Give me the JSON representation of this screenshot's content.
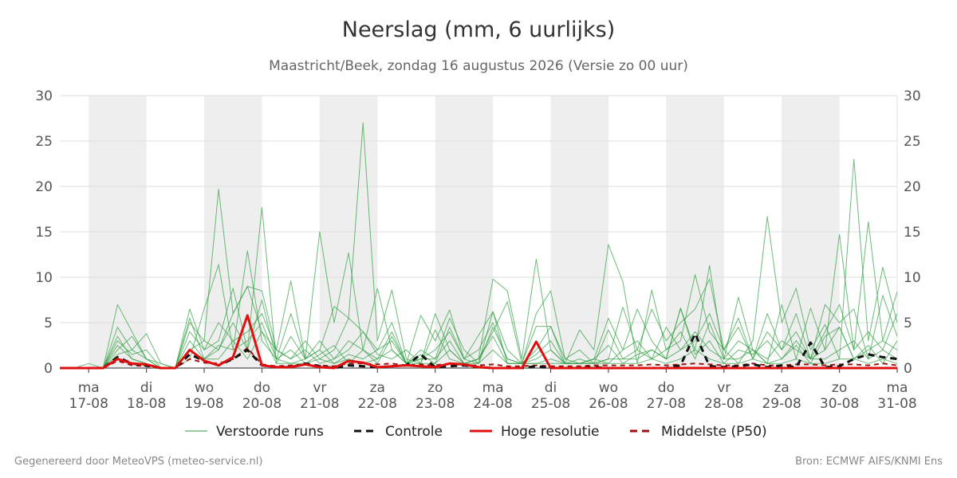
{
  "header": {
    "title": "Neerslag (mm, 6 uurlijks)",
    "subtitle": "Maastricht/Beek, zondag 16 augustus 2026 (Versie zo 00 uur)"
  },
  "footer": {
    "left": "Gegenereerd door MeteoVPS (meteo-service.nl)",
    "right": "Bron: ECMWF AIFS/KNMI Ens"
  },
  "chart_data": {
    "type": "line",
    "title": "Neerslag (mm, 6 uurlijks)",
    "subtitle": "Maastricht/Beek, zondag 16 augustus 2026 (Versie zo 00 uur)",
    "ylim": [
      0,
      30
    ],
    "yticks": [
      0,
      5,
      10,
      15,
      20,
      25,
      30
    ],
    "xlim": [
      "2026-08-16T12:00",
      "2026-08-31T00:00"
    ],
    "x_ticks": [
      {
        "date": "2026-08-17",
        "day": "ma",
        "label": "17-08"
      },
      {
        "date": "2026-08-18",
        "day": "di",
        "label": "18-08"
      },
      {
        "date": "2026-08-19",
        "day": "wo",
        "label": "19-08"
      },
      {
        "date": "2026-08-20",
        "day": "do",
        "label": "20-08"
      },
      {
        "date": "2026-08-21",
        "day": "vr",
        "label": "21-08"
      },
      {
        "date": "2026-08-22",
        "day": "za",
        "label": "22-08"
      },
      {
        "date": "2026-08-23",
        "day": "zo",
        "label": "23-08"
      },
      {
        "date": "2026-08-24",
        "day": "ma",
        "label": "24-08"
      },
      {
        "date": "2026-08-25",
        "day": "di",
        "label": "25-08"
      },
      {
        "date": "2026-08-26",
        "day": "wo",
        "label": "26-08"
      },
      {
        "date": "2026-08-27",
        "day": "do",
        "label": "27-08"
      },
      {
        "date": "2026-08-28",
        "day": "vr",
        "label": "28-08"
      },
      {
        "date": "2026-08-29",
        "day": "za",
        "label": "29-08"
      },
      {
        "date": "2026-08-30",
        "day": "zo",
        "label": "30-08"
      },
      {
        "date": "2026-08-31",
        "day": "ma",
        "label": "31-08"
      }
    ],
    "shaded_days": [
      "2026-08-17",
      "2026-08-19",
      "2026-08-21",
      "2026-08-23",
      "2026-08-25",
      "2026-08-27",
      "2026-08-29"
    ],
    "grid": true,
    "legend_position": "bottom",
    "legend": [
      {
        "name": "Verstoorde runs",
        "color": "#2e9e3e",
        "style": "thin"
      },
      {
        "name": "Controle",
        "color": "#111111",
        "style": "dashed"
      },
      {
        "name": "Hoge resolutie",
        "color": "#e01010",
        "style": "solid"
      },
      {
        "name": "Middelste (P50)",
        "color": "#9b1010",
        "style": "dashed"
      }
    ],
    "x": [
      "2026-08-16T12:00",
      "2026-08-16T18:00",
      "2026-08-17T00:00",
      "2026-08-17T06:00",
      "2026-08-17T12:00",
      "2026-08-17T18:00",
      "2026-08-18T00:00",
      "2026-08-18T06:00",
      "2026-08-18T12:00",
      "2026-08-18T18:00",
      "2026-08-19T00:00",
      "2026-08-19T06:00",
      "2026-08-19T12:00",
      "2026-08-19T18:00",
      "2026-08-20T00:00",
      "2026-08-20T06:00",
      "2026-08-20T12:00",
      "2026-08-20T18:00",
      "2026-08-21T00:00",
      "2026-08-21T06:00",
      "2026-08-21T12:00",
      "2026-08-21T18:00",
      "2026-08-22T00:00",
      "2026-08-22T06:00",
      "2026-08-22T12:00",
      "2026-08-22T18:00",
      "2026-08-23T00:00",
      "2026-08-23T06:00",
      "2026-08-23T12:00",
      "2026-08-23T18:00",
      "2026-08-24T00:00",
      "2026-08-24T06:00",
      "2026-08-24T12:00",
      "2026-08-24T18:00",
      "2026-08-25T00:00",
      "2026-08-25T06:00",
      "2026-08-25T12:00",
      "2026-08-25T18:00",
      "2026-08-26T00:00",
      "2026-08-26T06:00",
      "2026-08-26T12:00",
      "2026-08-26T18:00",
      "2026-08-27T00:00",
      "2026-08-27T06:00",
      "2026-08-27T12:00",
      "2026-08-27T18:00",
      "2026-08-28T00:00",
      "2026-08-28T06:00",
      "2026-08-28T12:00",
      "2026-08-28T18:00",
      "2026-08-29T00:00",
      "2026-08-29T06:00",
      "2026-08-29T12:00",
      "2026-08-29T18:00",
      "2026-08-30T00:00",
      "2026-08-30T06:00",
      "2026-08-30T12:00",
      "2026-08-30T18:00",
      "2026-08-31T00:00"
    ],
    "series": [
      {
        "name": "Verstoorde runs",
        "ensemble_member": 1,
        "values": [
          0,
          0,
          0,
          0,
          7.0,
          4.0,
          1.0,
          0.5,
          0,
          2.0,
          3.0,
          19.7,
          6.0,
          9.0,
          4.0,
          2.0,
          9.6,
          1.0,
          2.0,
          6.8,
          5.5,
          27.0,
          3.0,
          8.6,
          1.0,
          0.5,
          6.0,
          2.0,
          0.5,
          1.0,
          9.8,
          8.5,
          1.0,
          12.0,
          2.0,
          0.5,
          4.2,
          2.0,
          13.6,
          9.5,
          0.5,
          8.6,
          2.0,
          3.0,
          10.3,
          4.0,
          2.0,
          0.5,
          3.0,
          16.7,
          5.0,
          8.8,
          2.0,
          4.8,
          1.0,
          23.0,
          3.0,
          11.1,
          5.0
        ]
      },
      {
        "name": "Verstoorde runs",
        "ensemble_member": 2,
        "values": [
          0,
          0,
          0.5,
          0,
          4.5,
          2.0,
          3.8,
          0.5,
          0,
          1.0,
          6.5,
          11.4,
          2.0,
          12.9,
          3.0,
          1.0,
          6.0,
          1.0,
          15.0,
          5.0,
          12.7,
          2.0,
          8.8,
          2.0,
          0.5,
          5.8,
          3.0,
          6.4,
          1.0,
          3.6,
          6.2,
          2.0,
          0.5,
          4.6,
          4.6,
          1.0,
          0.5,
          1.0,
          5.5,
          2.0,
          6.5,
          3.0,
          1.0,
          6.6,
          2.0,
          11.3,
          1.0,
          7.8,
          2.0,
          0.5,
          7.0,
          1.0,
          6.6,
          2.0,
          14.7,
          2.0,
          16.1,
          3.0,
          8.4
        ]
      },
      {
        "name": "Verstoorde runs",
        "ensemble_member": 3,
        "values": [
          0,
          0,
          0,
          0,
          3.0,
          1.5,
          2.0,
          0,
          0,
          6.5,
          2.0,
          3.0,
          8.8,
          2.0,
          17.7,
          0.5,
          3.5,
          1.0,
          3.0,
          1.0,
          2.0,
          4.0,
          1.5,
          1.0,
          2.0,
          0.5,
          4.2,
          1.0,
          0.5,
          1.0,
          4.0,
          7.3,
          0.5,
          6.0,
          8.5,
          1.0,
          2.0,
          0.5,
          4.2,
          1.0,
          2.0,
          6.5,
          3.0,
          5.0,
          6.5,
          9.8,
          2.0,
          4.5,
          1.0,
          6.0,
          2.0,
          4.0,
          1.0,
          7.0,
          5.0,
          6.5,
          1.0,
          8.0,
          3.5
        ]
      },
      {
        "name": "Verstoorde runs",
        "ensemble_member": 4,
        "values": [
          0,
          0,
          0,
          0,
          2.0,
          3.5,
          1.0,
          0,
          0,
          5.0,
          3.0,
          2.0,
          6.0,
          9.0,
          8.5,
          2.0,
          1.0,
          3.0,
          1.0,
          2.0,
          5.5,
          4.0,
          2.0,
          5.0,
          0.5,
          2.0,
          1.0,
          5.5,
          2.0,
          0.5,
          4.5,
          1.0,
          0.5,
          2.0,
          4.6,
          0.5,
          1.0,
          0.5,
          1.0,
          6.7,
          2.0,
          1.0,
          4.5,
          2.0,
          3.0,
          6.0,
          2.0,
          5.5,
          1.0,
          4.0,
          2.0,
          6.0,
          1.0,
          4.0,
          7.0,
          2.0,
          4.0,
          2.0,
          6.0
        ]
      },
      {
        "name": "Verstoorde runs",
        "ensemble_member": 5,
        "values": [
          0,
          0,
          0,
          0,
          2.5,
          1.0,
          0.5,
          0,
          0,
          4.0,
          2.0,
          5.0,
          3.0,
          4.0,
          6.0,
          2.0,
          1.0,
          2.0,
          0.5,
          1.0,
          3.0,
          2.0,
          1.0,
          4.0,
          0.5,
          1.0,
          2.0,
          4.0,
          1.0,
          2.0,
          5.0,
          1.0,
          0.5,
          1.0,
          2.0,
          0.5,
          0.5,
          1.0,
          0.5,
          2.0,
          3.0,
          1.0,
          2.0,
          4.0,
          1.0,
          5.0,
          1.0,
          3.0,
          2.0,
          1.0,
          3.0,
          2.0,
          1.0,
          2.0,
          4.5,
          1.0,
          2.0,
          3.0,
          2.0
        ]
      },
      {
        "name": "Verstoorde runs",
        "ensemble_member": 6,
        "values": [
          0,
          0,
          0,
          0,
          1.5,
          2.0,
          1.0,
          0,
          0,
          3.0,
          1.0,
          2.0,
          5.0,
          2.0,
          7.5,
          1.0,
          0.5,
          1.0,
          2.0,
          0.5,
          1.5,
          1.0,
          2.0,
          3.0,
          0.5,
          1.0,
          1.0,
          3.0,
          0.5,
          1.0,
          3.5,
          0.5,
          0.5,
          0.5,
          1.0,
          0.5,
          0.5,
          0.5,
          1.0,
          1.0,
          1.0,
          2.0,
          1.0,
          2.0,
          4.0,
          2.0,
          1.0,
          1.0,
          2.0,
          0.5,
          1.0,
          3.0,
          1.0,
          1.0,
          2.0,
          3.0,
          1.0,
          2.0,
          1.0
        ]
      },
      {
        "name": "Verstoorde runs",
        "ensemble_member": 7,
        "values": [
          0,
          0,
          0,
          0,
          1.0,
          0.5,
          0.5,
          0,
          0,
          2.0,
          1.0,
          1.0,
          3.0,
          1.0,
          4.0,
          0.5,
          0.5,
          0.5,
          1.0,
          0.5,
          1.0,
          0.5,
          1.0,
          2.0,
          0.5,
          0.5,
          0.5,
          2.0,
          0.5,
          0.5,
          2.0,
          0.5,
          0.5,
          0.5,
          0.5,
          0.5,
          0.5,
          0.5,
          0.5,
          0.5,
          0.5,
          1.0,
          0.5,
          1.0,
          2.0,
          1.0,
          0.5,
          0.5,
          1.0,
          0.5,
          0.5,
          1.0,
          0.5,
          0.5,
          1.0,
          1.0,
          0.5,
          1.0,
          0.5
        ]
      },
      {
        "name": "Verstoorde runs",
        "ensemble_member": 8,
        "values": [
          0,
          0,
          0,
          0,
          3.5,
          1.0,
          0.5,
          0,
          0,
          5.5,
          1.0,
          2.5,
          2.0,
          3.0,
          5.0,
          1.0,
          2.0,
          0.5,
          1.5,
          2.5,
          0.5,
          2.0,
          0.5,
          3.5,
          0.5,
          1.5,
          0.5,
          4.5,
          1.0,
          0.5,
          6.2,
          0.5,
          0.5,
          1.5,
          3.0,
          0.5,
          0.5,
          1.0,
          2.5,
          0.5,
          1.5,
          2.0,
          1.0,
          6.6,
          1.5,
          3.0,
          0.5,
          2.0,
          1.5,
          3.0,
          1.0,
          2.5,
          0.5,
          3.5,
          4.5,
          1.0,
          2.5,
          0.5,
          3.0
        ]
      }
    ],
    "controle": [
      0,
      0,
      0,
      0,
      1.2,
      0.5,
      0.3,
      0,
      0,
      1.5,
      0.8,
      0.3,
      1.0,
      2.0,
      0.3,
      0.1,
      0.1,
      0.5,
      0.2,
      0,
      0.3,
      0.2,
      0.1,
      0.2,
      0.3,
      1.5,
      0.1,
      0.2,
      0.3,
      0.1,
      0,
      0,
      0,
      0.2,
      0,
      0,
      0,
      0.1,
      0,
      0,
      0,
      0,
      0,
      0.3,
      3.8,
      0.2,
      0.1,
      0.2,
      0.4,
      0.1,
      0.3,
      0.1,
      2.8,
      0.1,
      0.2,
      1.0,
      1.5,
      1.2,
      1.0
    ]
  },
  "hoge_resolutie": [
    0,
    0,
    0,
    0,
    1.0,
    0.5,
    0.4,
    0,
    0,
    2.0,
    0.8,
    0.3,
    1.2,
    5.8,
    0.3,
    0.1,
    0.1,
    0.4,
    0.1,
    0,
    0.8,
    0.6,
    0.1,
    0.2,
    0.3,
    0.2,
    0.1,
    0.5,
    0.4,
    0.1,
    0,
    0,
    0,
    2.9,
    0,
    0,
    0,
    0,
    0,
    0,
    0,
    0,
    0,
    0,
    0,
    0,
    0,
    0,
    0,
    0,
    0,
    0,
    0,
    0,
    0,
    0,
    0,
    0,
    0
  ],
  "middelste": [
    0,
    0,
    0,
    0,
    0.8,
    0.3,
    0.2,
    0,
    0,
    1.0,
    0.6,
    0.5,
    1.0,
    2.2,
    0.4,
    0.2,
    0.3,
    0.4,
    0.3,
    0.2,
    0.5,
    0.5,
    0.4,
    0.5,
    0.3,
    0.4,
    0.3,
    0.5,
    0.3,
    0.3,
    0.4,
    0.2,
    0.2,
    0.3,
    0.2,
    0.2,
    0.2,
    0.3,
    0.3,
    0.3,
    0.3,
    0.4,
    0.3,
    0.4,
    0.5,
    0.4,
    0.3,
    0.3,
    0.5,
    0.3,
    0.3,
    0.4,
    0.4,
    0.3,
    0.4,
    0.4,
    0.3,
    0.5,
    0.3
  ]
}
